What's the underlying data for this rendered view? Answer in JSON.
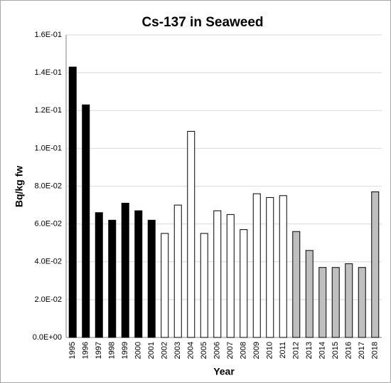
{
  "chart_data": {
    "type": "bar",
    "title": "Cs-137 in Seaweed",
    "x_label": "Year",
    "y_label": "Bq/kg fw",
    "categories": [
      "1995",
      "1996",
      "1997",
      "1998",
      "1999",
      "2000",
      "2001",
      "2002",
      "2003",
      "2004",
      "2005",
      "2006",
      "2007",
      "2008",
      "2009",
      "2010",
      "2011",
      "2012",
      "2013",
      "2014",
      "2015",
      "2016",
      "2017",
      "2018"
    ],
    "values": [
      0.143,
      0.123,
      0.066,
      0.062,
      0.071,
      0.067,
      0.062,
      0.055,
      0.07,
      0.109,
      0.055,
      0.067,
      0.065,
      0.057,
      0.076,
      0.074,
      0.075,
      0.056,
      0.046,
      0.037,
      0.037,
      0.039,
      0.037,
      0.077
    ],
    "colors": [
      "#000000",
      "#000000",
      "#000000",
      "#000000",
      "#000000",
      "#000000",
      "#000000",
      "#ffffff",
      "#ffffff",
      "#ffffff",
      "#ffffff",
      "#ffffff",
      "#ffffff",
      "#ffffff",
      "#ffffff",
      "#ffffff",
      "#ffffff",
      "#bfbfbf",
      "#bfbfbf",
      "#bfbfbf",
      "#bfbfbf",
      "#bfbfbf",
      "#bfbfbf",
      "#bfbfbf"
    ],
    "ylim": [
      0,
      0.16
    ],
    "yticks": [
      {
        "value": 0,
        "label": "0.0E+00"
      },
      {
        "value": 0.02,
        "label": "2.0E-02"
      },
      {
        "value": 0.04,
        "label": "4.0E-02"
      },
      {
        "value": 0.06,
        "label": "6.0E-02"
      },
      {
        "value": 0.08,
        "label": "8.0E-02"
      },
      {
        "value": 0.1,
        "label": "1.0E-01"
      },
      {
        "value": 0.12,
        "label": "1.2E-01"
      },
      {
        "value": 0.14,
        "label": "1.4E-01"
      },
      {
        "value": 0.16,
        "label": "1.6E-01"
      }
    ],
    "grid": true
  }
}
